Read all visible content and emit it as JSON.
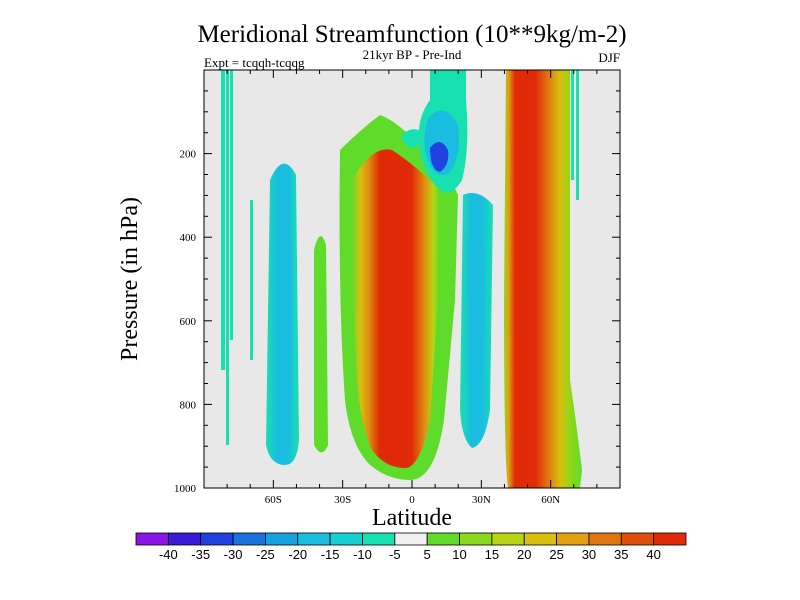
{
  "chart_data": {
    "type": "heatmap",
    "title": "Meridional Streamfunction (10**9kg/m-2)",
    "subtitle": "21kyr BP - Pre-Ind",
    "left_label": "Expt = tcqqh-tcqqg",
    "right_label": "DJF",
    "xlabel": "Latitude",
    "ylabel": "Pressure (in hPa)",
    "xlim": [
      -90,
      90
    ],
    "ylim": [
      1000,
      0
    ],
    "x_ticks": [
      {
        "value": -60,
        "label": "60S"
      },
      {
        "value": -30,
        "label": "30S"
      },
      {
        "value": 0,
        "label": "0"
      },
      {
        "value": 30,
        "label": "30N"
      },
      {
        "value": 60,
        "label": "60N"
      }
    ],
    "y_ticks": [
      {
        "value": 200,
        "label": "200"
      },
      {
        "value": 400,
        "label": "400"
      },
      {
        "value": 600,
        "label": "600"
      },
      {
        "value": 800,
        "label": "800"
      },
      {
        "value": 1000,
        "label": "1000"
      }
    ],
    "colorbar": {
      "labels": [
        "-40",
        "-35",
        "-30",
        "-25",
        "-20",
        "-15",
        "-10",
        "-5",
        "5",
        "10",
        "15",
        "20",
        "25",
        "30",
        "35",
        "40"
      ],
      "colors": [
        "#8a16e6",
        "#3a1cd8",
        "#2043e0",
        "#1a72dc",
        "#17a2df",
        "#19bde0",
        "#16d0d2",
        "#19e0b0",
        "#f0f0f0",
        "#5fdc2a",
        "#8cd81c",
        "#b8d414",
        "#d8c00e",
        "#e0a010",
        "#e07410",
        "#e04c0a",
        "#e02a08"
      ]
    },
    "regions": [
      {
        "name": "sh-polar-thin-streaks",
        "lat": [
          -84,
          -81
        ],
        "p": [
          0,
          900
        ],
        "level": -5
      },
      {
        "name": "sh-highlat-negative-cell",
        "lat": [
          -64,
          -54
        ],
        "p": [
          280,
          960
        ],
        "level": -10
      },
      {
        "name": "sh-highlat-negative-core",
        "lat": [
          -62,
          -56
        ],
        "p": [
          380,
          860
        ],
        "level": -15
      },
      {
        "name": "sh-midlat-positive-cell",
        "lat": [
          -44,
          -38
        ],
        "p": [
          380,
          920
        ],
        "level": 5
      },
      {
        "name": "hadley-positive-cell",
        "lat": [
          -17,
          18
        ],
        "p": [
          120,
          970
        ],
        "level": 40
      },
      {
        "name": "upper-negative-cell",
        "lat": [
          3,
          19
        ],
        "p": [
          0,
          210
        ],
        "level": -20
      },
      {
        "name": "nh-subtropical-negative-cell",
        "lat": [
          22,
          35
        ],
        "p": [
          250,
          920
        ],
        "level": -15
      },
      {
        "name": "nh-ferrel-positive-cell",
        "lat": [
          42,
          68
        ],
        "p": [
          0,
          980
        ],
        "level": 40
      },
      {
        "name": "nh-polar-thin-streaks",
        "lat": [
          70,
          75
        ],
        "p": [
          0,
          230
        ],
        "level": -5
      }
    ]
  }
}
